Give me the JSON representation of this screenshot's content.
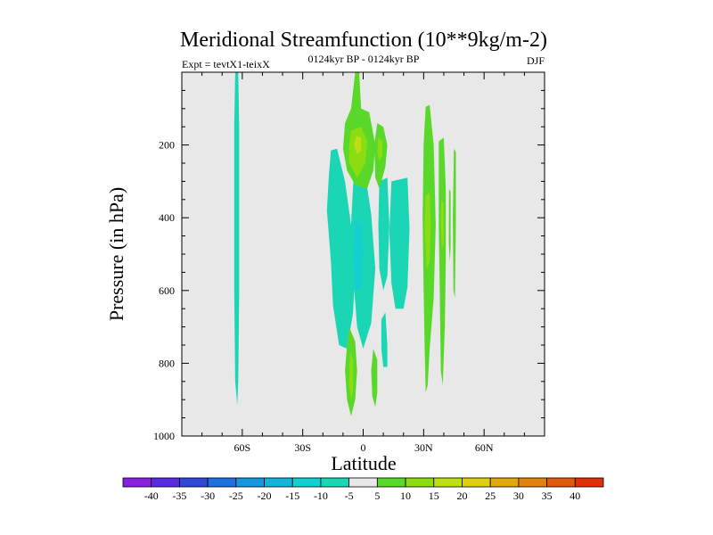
{
  "chart_data": {
    "type": "contour",
    "title": "Meridional Streamfunction (10**9kg/m-2)",
    "subtitle": "0124kyr BP - 0124kyr BP",
    "left_label": "Expt = tevtX1-teixX",
    "right_label": "DJF",
    "xlabel": "Latitude",
    "ylabel": "Pressure (in hPa)",
    "xlim": [
      -90,
      90
    ],
    "ylim": [
      1000,
      0
    ],
    "x_ticks": [
      {
        "value": -60,
        "label": "60S"
      },
      {
        "value": -30,
        "label": "30S"
      },
      {
        "value": 0,
        "label": "0"
      },
      {
        "value": 30,
        "label": "30N"
      },
      {
        "value": 60,
        "label": "60N"
      }
    ],
    "y_ticks": [
      {
        "value": 200,
        "label": "200"
      },
      {
        "value": 400,
        "label": "400"
      },
      {
        "value": 600,
        "label": "600"
      },
      {
        "value": 800,
        "label": "800"
      },
      {
        "value": 1000,
        "label": "1000"
      }
    ],
    "background_color": "#e8e8e8",
    "colorbar": {
      "levels": [
        -40,
        -35,
        -30,
        -25,
        -20,
        -15,
        -10,
        -5,
        5,
        10,
        15,
        20,
        25,
        30,
        35,
        40
      ],
      "colors": [
        "#8a1fe0",
        "#5a2ae0",
        "#2f48d8",
        "#1f6fe0",
        "#1597dc",
        "#12b4d9",
        "#14cfd0",
        "#1ad6b4",
        "#e8e8e8",
        "#5ad82a",
        "#8cdc12",
        "#bede14",
        "#e0cf10",
        "#e0aa0e",
        "#e0820c",
        "#e05a0c",
        "#e0300a"
      ]
    },
    "contour_regions": [
      {
        "name": "region-neg-60s-column",
        "value": -7,
        "color": "#1ad6b4",
        "points": [
          [
            -63.5,
            0
          ],
          [
            -62.0,
            0
          ],
          [
            -61.5,
            150
          ],
          [
            -61.5,
            600
          ],
          [
            -62.0,
            850
          ],
          [
            -62.5,
            915
          ],
          [
            -63.5,
            850
          ],
          [
            -64.0,
            600
          ],
          [
            -64.0,
            150
          ]
        ]
      },
      {
        "name": "region-neg-equator-left",
        "value": -7,
        "color": "#1ad6b4",
        "points": [
          [
            -16,
            215
          ],
          [
            -13,
            210
          ],
          [
            -9,
            300
          ],
          [
            -6,
            420
          ],
          [
            -4,
            540
          ],
          [
            -5,
            660
          ],
          [
            -8,
            760
          ],
          [
            -12,
            750
          ],
          [
            -15,
            640
          ],
          [
            -16,
            520
          ],
          [
            -18,
            380
          ],
          [
            -17,
            280
          ]
        ]
      },
      {
        "name": "region-neg-equator-center",
        "value": -7,
        "color": "#1ad6b4",
        "points": [
          [
            -3,
            240
          ],
          [
            1,
            280
          ],
          [
            4,
            390
          ],
          [
            6,
            540
          ],
          [
            4,
            690
          ],
          [
            0,
            760
          ],
          [
            -3,
            700
          ],
          [
            -5,
            560
          ],
          [
            -6,
            420
          ],
          [
            -5,
            310
          ]
        ]
      },
      {
        "name": "region-neg-equator-center-core",
        "value": -12,
        "color": "#14cfd0",
        "points": [
          [
            -4,
            410
          ],
          [
            -1,
            420
          ],
          [
            0,
            500
          ],
          [
            -1,
            590
          ],
          [
            -4,
            600
          ],
          [
            -5,
            500
          ]
        ]
      },
      {
        "name": "region-neg-8n-column",
        "value": -7,
        "color": "#1ad6b4",
        "points": [
          [
            8,
            300
          ],
          [
            12,
            290
          ],
          [
            13,
            420
          ],
          [
            12,
            560
          ],
          [
            10,
            600
          ],
          [
            8,
            540
          ],
          [
            7.5,
            420
          ]
        ]
      },
      {
        "name": "region-neg-13n-block",
        "value": -7,
        "color": "#1ad6b4",
        "points": [
          [
            14,
            300
          ],
          [
            22,
            290
          ],
          [
            23,
            430
          ],
          [
            22,
            590
          ],
          [
            20,
            650
          ],
          [
            16,
            650
          ],
          [
            14,
            580
          ],
          [
            13,
            440
          ]
        ]
      },
      {
        "name": "region-neg-12n-lower",
        "value": -7,
        "color": "#1ad6b4",
        "points": [
          [
            9,
            680
          ],
          [
            11,
            660
          ],
          [
            12,
            750
          ],
          [
            12,
            810
          ],
          [
            10,
            810
          ],
          [
            9,
            760
          ]
        ]
      },
      {
        "name": "region-pos-upper-equator",
        "value": 7,
        "color": "#5ad82a",
        "points": [
          [
            -4,
            0
          ],
          [
            -2,
            0
          ],
          [
            -1,
            100
          ],
          [
            3,
            110
          ],
          [
            6,
            200
          ],
          [
            5,
            270
          ],
          [
            2,
            320
          ],
          [
            -4,
            310
          ],
          [
            -8,
            270
          ],
          [
            -10,
            210
          ],
          [
            -9,
            140
          ],
          [
            -6,
            100
          ]
        ]
      },
      {
        "name": "region-pos-upper-equator-core",
        "value": 12,
        "color": "#8cdc12",
        "points": [
          [
            -6,
            160
          ],
          [
            -1,
            150
          ],
          [
            2,
            190
          ],
          [
            1,
            250
          ],
          [
            -3,
            290
          ],
          [
            -7,
            250
          ],
          [
            -7,
            200
          ]
        ]
      },
      {
        "name": "region-pos-upper-equator-peak",
        "value": 17,
        "color": "#bede14",
        "points": [
          [
            -3.5,
            175
          ],
          [
            -1,
            180
          ],
          [
            -1,
            215
          ],
          [
            -3,
            225
          ],
          [
            -4.5,
            200
          ]
        ]
      },
      {
        "name": "region-pos-upper-8n",
        "value": 7,
        "color": "#5ad82a",
        "points": [
          [
            7,
            140
          ],
          [
            10,
            150
          ],
          [
            12,
            200
          ],
          [
            11,
            260
          ],
          [
            8,
            320
          ],
          [
            6,
            290
          ],
          [
            5.5,
            200
          ]
        ]
      },
      {
        "name": "region-pos-upper-8n-core",
        "value": 12,
        "color": "#8cdc12",
        "points": [
          [
            7.5,
            180
          ],
          [
            9.5,
            190
          ],
          [
            9.5,
            230
          ],
          [
            8,
            245
          ],
          [
            7,
            220
          ]
        ]
      },
      {
        "name": "region-pos-30n-column",
        "value": 7,
        "color": "#5ad82a",
        "points": [
          [
            31,
            95
          ],
          [
            33,
            90
          ],
          [
            35,
            200
          ],
          [
            36,
            420
          ],
          [
            35,
            620
          ],
          [
            33,
            760
          ],
          [
            32,
            860
          ],
          [
            31,
            880
          ],
          [
            30.5,
            760
          ],
          [
            30,
            600
          ],
          [
            29.5,
            400
          ],
          [
            30,
            200
          ]
        ]
      },
      {
        "name": "region-pos-30n-core",
        "value": 12,
        "color": "#8cdc12",
        "points": [
          [
            31,
            340
          ],
          [
            33,
            330
          ],
          [
            33.5,
            420
          ],
          [
            33,
            520
          ],
          [
            31.5,
            540
          ],
          [
            30.5,
            430
          ]
        ]
      },
      {
        "name": "region-pos-38n-column",
        "value": 7,
        "color": "#5ad82a",
        "points": [
          [
            37.5,
            190
          ],
          [
            40,
            180
          ],
          [
            41,
            320
          ],
          [
            41,
            520
          ],
          [
            40.5,
            700
          ],
          [
            39.5,
            860
          ],
          [
            38.5,
            820
          ],
          [
            38,
            600
          ],
          [
            37.5,
            420
          ]
        ]
      },
      {
        "name": "region-pos-38n-core",
        "value": 12,
        "color": "#8cdc12",
        "points": [
          [
            38.8,
            350
          ],
          [
            40,
            360
          ],
          [
            40,
            470
          ],
          [
            39,
            490
          ],
          [
            38.5,
            420
          ]
        ]
      },
      {
        "name": "region-pos-44n-thin",
        "value": 7,
        "color": "#5ad82a",
        "points": [
          [
            45,
            210
          ],
          [
            46,
            220
          ],
          [
            46,
            420
          ],
          [
            45.5,
            620
          ],
          [
            44.8,
            600
          ],
          [
            44.5,
            400
          ]
        ]
      },
      {
        "name": "region-pos-43n-thin",
        "value": 7,
        "color": "#5ad82a",
        "points": [
          [
            42.6,
            320
          ],
          [
            43.4,
            330
          ],
          [
            43.4,
            480
          ],
          [
            43,
            520
          ],
          [
            42.5,
            470
          ]
        ]
      },
      {
        "name": "region-pos-lower-left",
        "value": 7,
        "color": "#5ad82a",
        "points": [
          [
            -7,
            700
          ],
          [
            -4,
            740
          ],
          [
            -3,
            820
          ],
          [
            -4,
            900
          ],
          [
            -6,
            945
          ],
          [
            -8,
            900
          ],
          [
            -9,
            820
          ],
          [
            -8,
            750
          ]
        ]
      },
      {
        "name": "region-pos-lower-left-core",
        "value": 12,
        "color": "#8cdc12",
        "points": [
          [
            -6.5,
            770
          ],
          [
            -5,
            790
          ],
          [
            -5,
            880
          ],
          [
            -6,
            900
          ],
          [
            -7,
            860
          ]
        ]
      },
      {
        "name": "region-pos-lower-center",
        "value": 7,
        "color": "#5ad82a",
        "points": [
          [
            5,
            760
          ],
          [
            7,
            790
          ],
          [
            7,
            880
          ],
          [
            6,
            920
          ],
          [
            4.5,
            890
          ],
          [
            4,
            820
          ]
        ]
      }
    ]
  }
}
